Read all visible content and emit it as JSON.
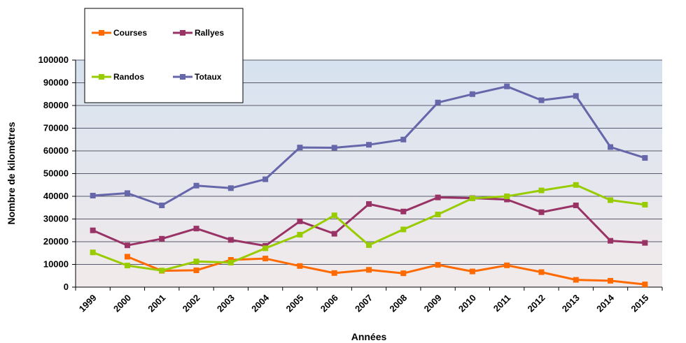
{
  "chart_data": {
    "type": "line",
    "title": "",
    "xlabel": "Années",
    "ylabel": "Nombre de kilomètres",
    "x": [
      "1999",
      "2000",
      "2001",
      "2002",
      "2003",
      "2004",
      "2005",
      "2006",
      "2007",
      "2008",
      "2009",
      "2010",
      "2011",
      "2012",
      "2013",
      "2014",
      "2015"
    ],
    "ylim": [
      0,
      100000
    ],
    "yticks": [
      "0",
      "10000",
      "20000",
      "30000",
      "40000",
      "50000",
      "60000",
      "70000",
      "80000",
      "90000",
      "100000"
    ],
    "grid": true,
    "legend_position": "top-left",
    "series": [
      {
        "name": "Courses",
        "color": "#ff6a00",
        "values": [
          null,
          13400,
          7200,
          7400,
          12000,
          12600,
          9300,
          6200,
          7600,
          6100,
          9800,
          6900,
          9600,
          6600,
          3200,
          2800,
          1200
        ]
      },
      {
        "name": "Rallyes",
        "color": "#993366",
        "values": [
          25000,
          18400,
          21300,
          25800,
          20800,
          18200,
          29000,
          23500,
          36600,
          33300,
          39500,
          39200,
          38600,
          33000,
          36000,
          20400,
          19500
        ]
      },
      {
        "name": "Randos",
        "color": "#99cc00",
        "values": [
          15300,
          9500,
          7300,
          11300,
          10800,
          17100,
          23100,
          31600,
          18500,
          25400,
          32000,
          39100,
          40000,
          42600,
          45000,
          38300,
          36300
        ]
      },
      {
        "name": "Totaux",
        "color": "#6666aa",
        "values": [
          40300,
          41400,
          36000,
          44700,
          43600,
          47500,
          61500,
          61400,
          62700,
          65000,
          81300,
          85000,
          88400,
          82300,
          84200,
          61700,
          56900
        ]
      }
    ]
  }
}
